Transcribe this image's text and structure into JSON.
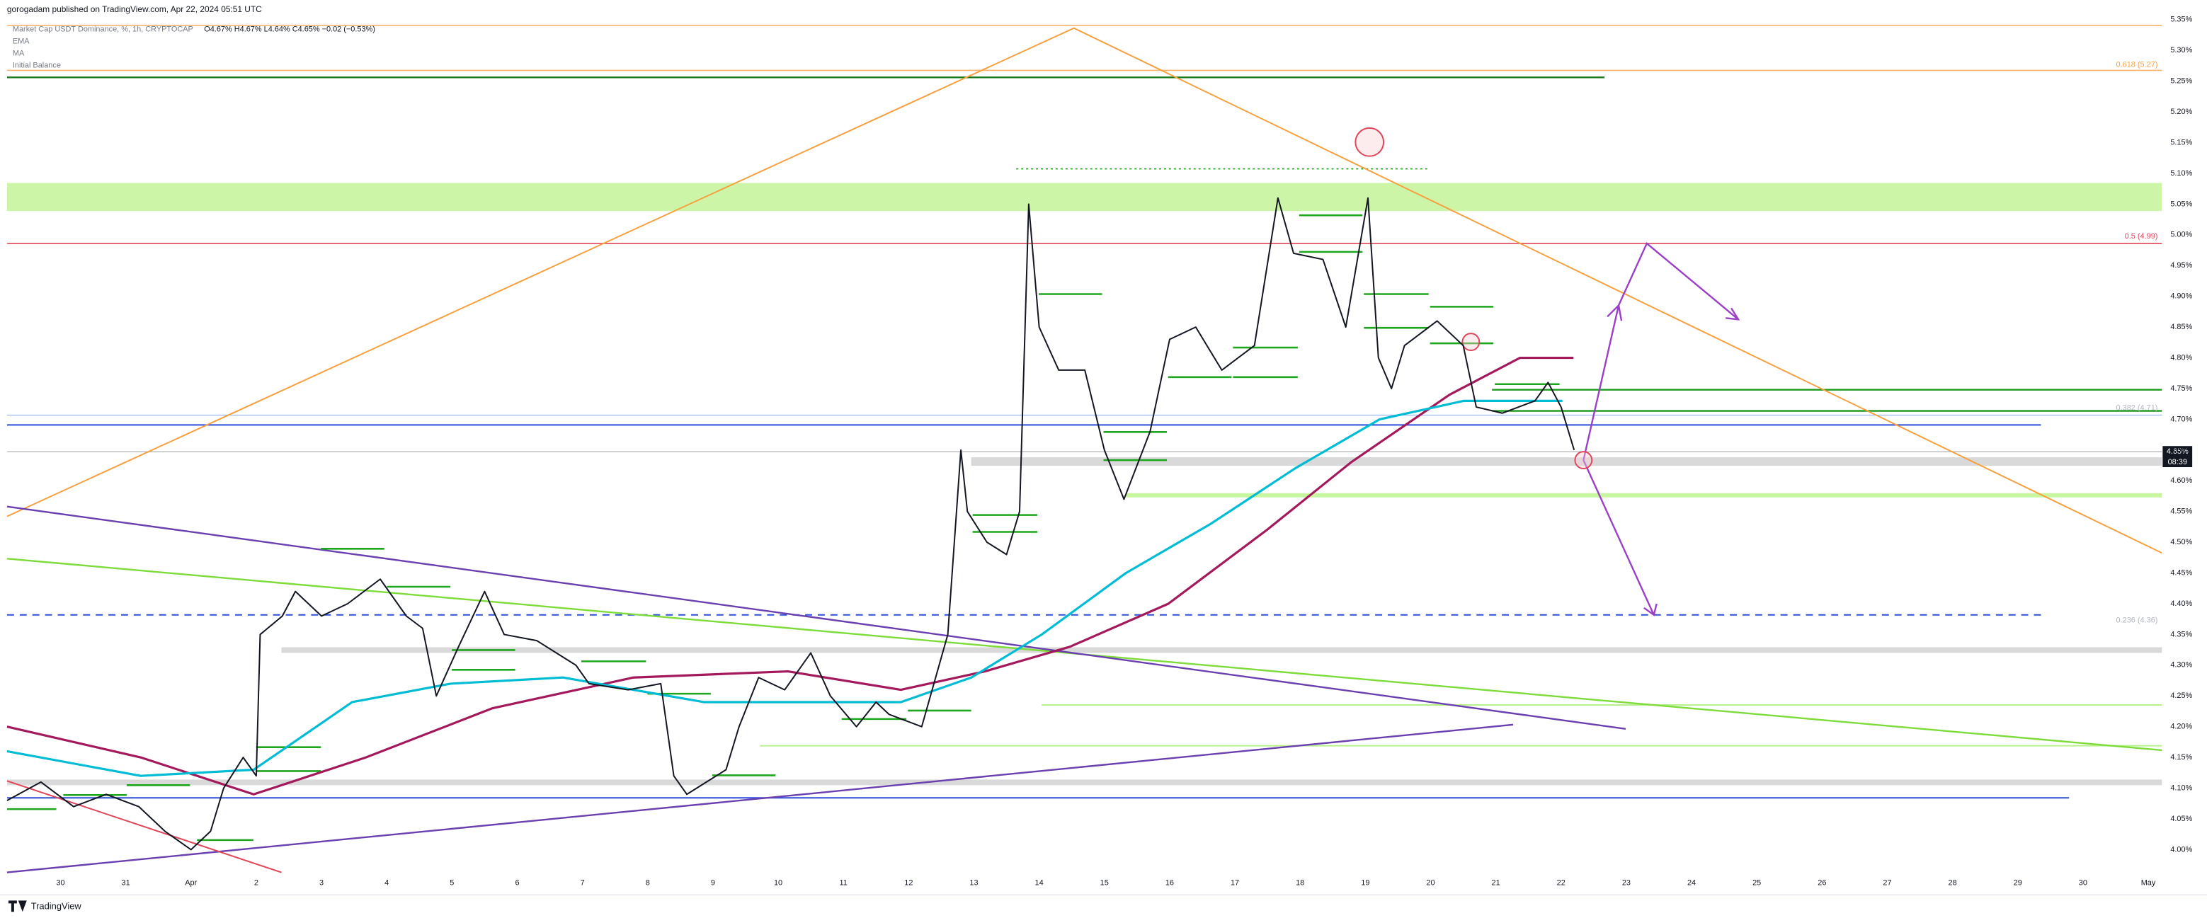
{
  "chart_data": {
    "type": "line",
    "header": "gorogadam published on TradingView.com, Apr 22, 2024 05:51 UTC",
    "ohlc": "O4.67% H4.67% L4.64% C4.65% −0.02 (−0.53%)",
    "indicator": "Initial Balance",
    "last_price_label": "4.65%",
    "countdown": "08:39",
    "fib_labels": [
      "0.618 (5.27)",
      "0.5 (4.99)",
      "0.382 (4.71)",
      "0.236 (4.36)"
    ],
    "footer": "TradingView",
    "xlim": [
      -0.82,
      32.21
    ],
    "ylim": [
      3.963,
      5.382
    ],
    "grid": false,
    "xticks": [
      {
        "value": 0,
        "label": "30"
      },
      {
        "value": 1,
        "label": "31"
      },
      {
        "value": 2,
        "label": "Apr"
      },
      {
        "value": 3,
        "label": "2"
      },
      {
        "value": 4,
        "label": "3"
      },
      {
        "value": 5,
        "label": "4"
      },
      {
        "value": 6,
        "label": "5"
      },
      {
        "value": 7,
        "label": "6"
      },
      {
        "value": 8,
        "label": "7"
      },
      {
        "value": 9,
        "label": "8"
      },
      {
        "value": 10,
        "label": "9"
      },
      {
        "value": 11,
        "label": "10"
      },
      {
        "value": 12,
        "label": "11"
      },
      {
        "value": 13,
        "label": "12"
      },
      {
        "value": 14,
        "label": "13"
      },
      {
        "value": 15,
        "label": "14"
      },
      {
        "value": 16,
        "label": "15"
      },
      {
        "value": 17,
        "label": "16"
      },
      {
        "value": 18,
        "label": "17"
      },
      {
        "value": 19,
        "label": "18"
      },
      {
        "value": 20,
        "label": "19"
      },
      {
        "value": 21,
        "label": "20"
      },
      {
        "value": 22,
        "label": "21"
      },
      {
        "value": 23,
        "label": "22"
      },
      {
        "value": 24,
        "label": "23"
      },
      {
        "value": 25,
        "label": "24"
      },
      {
        "value": 26,
        "label": "25"
      },
      {
        "value": 27,
        "label": "26"
      },
      {
        "value": 28,
        "label": "27"
      },
      {
        "value": 29,
        "label": "28"
      },
      {
        "value": 30,
        "label": "29"
      },
      {
        "value": 31,
        "label": "30"
      },
      {
        "value": 32,
        "label": "May"
      }
    ],
    "yticks": [
      {
        "value": 5.35,
        "label": "5.35%"
      },
      {
        "value": 5.3,
        "label": "5.30%"
      },
      {
        "value": 5.25,
        "label": "5.25%"
      },
      {
        "value": 5.2,
        "label": "5.20%"
      },
      {
        "value": 5.15,
        "label": "5.15%"
      },
      {
        "value": 5.1,
        "label": "5.10%"
      },
      {
        "value": 5.05,
        "label": "5.05%"
      },
      {
        "value": 5.0,
        "label": "5.00%"
      },
      {
        "value": 4.95,
        "label": "4.95%"
      },
      {
        "value": 4.9,
        "label": "4.90%"
      },
      {
        "value": 4.85,
        "label": "4.85%"
      },
      {
        "value": 4.8,
        "label": "4.80%"
      },
      {
        "value": 4.75,
        "label": "4.75%"
      },
      {
        "value": 4.7,
        "label": "4.70%"
      },
      {
        "value": 4.65,
        "label": "4.65%"
      },
      {
        "value": 4.6,
        "label": "4.60%"
      },
      {
        "value": 4.55,
        "label": "4.55%"
      },
      {
        "value": 4.5,
        "label": "4.50%"
      },
      {
        "value": 4.45,
        "label": "4.45%"
      },
      {
        "value": 4.4,
        "label": "4.40%"
      },
      {
        "value": 4.35,
        "label": "4.35%"
      },
      {
        "value": 4.3,
        "label": "4.30%"
      },
      {
        "value": 4.25,
        "label": "4.25%"
      },
      {
        "value": 4.2,
        "label": "4.20%"
      },
      {
        "value": 4.15,
        "label": "4.15%"
      },
      {
        "value": 4.1,
        "label": "4.10%"
      },
      {
        "value": 4.05,
        "label": "4.05%"
      },
      {
        "value": 4.0,
        "label": "4.00%"
      }
    ],
    "series": [
      {
        "name": "Market Cap USDT Dominance, %, 1h, CRYPTOCAP",
        "color": "#131722",
        "x": [
          -0.82,
          -0.3,
          0.2,
          0.7,
          1.2,
          1.6,
          2.0,
          2.3,
          2.5,
          2.8,
          3.0,
          3.06,
          3.4,
          3.6,
          4.0,
          4.4,
          4.9,
          5.3,
          5.55,
          5.76,
          6.1,
          6.5,
          6.8,
          7.3,
          7.9,
          8.1,
          8.7,
          9.2,
          9.4,
          9.6,
          9.9,
          10.2,
          10.4,
          10.7,
          11.1,
          11.5,
          11.8,
          12.2,
          12.5,
          12.7,
          13.2,
          13.6,
          13.8,
          13.9,
          14.2,
          14.5,
          14.7,
          14.84,
          15.0,
          15.3,
          15.7,
          16.0,
          16.3,
          16.7,
          17.0,
          17.4,
          17.8,
          18.3,
          18.66,
          18.9,
          19.35,
          19.7,
          20.04,
          20.2,
          20.4,
          20.6,
          21.1,
          21.5,
          21.7,
          22.1,
          22.6,
          22.8,
          23.0,
          23.2
        ],
        "values": [
          4.08,
          4.11,
          4.07,
          4.09,
          4.07,
          4.03,
          4.0,
          4.03,
          4.1,
          4.15,
          4.12,
          4.35,
          4.38,
          4.42,
          4.38,
          4.4,
          4.44,
          4.38,
          4.36,
          4.25,
          4.33,
          4.42,
          4.35,
          4.34,
          4.3,
          4.27,
          4.26,
          4.27,
          4.12,
          4.09,
          4.11,
          4.13,
          4.2,
          4.28,
          4.26,
          4.32,
          4.25,
          4.2,
          4.24,
          4.22,
          4.2,
          4.35,
          4.65,
          4.55,
          4.5,
          4.48,
          4.55,
          5.05,
          4.85,
          4.78,
          4.78,
          4.65,
          4.57,
          4.68,
          4.83,
          4.85,
          4.78,
          4.82,
          5.06,
          4.97,
          4.96,
          4.85,
          5.06,
          4.8,
          4.75,
          4.82,
          4.86,
          4.82,
          4.72,
          4.71,
          4.73,
          4.76,
          4.72,
          4.65
        ]
      },
      {
        "name": "EMA",
        "color": "#00bcd4",
        "x": [
          -0.82,
          1.23,
          2.96,
          4.47,
          5.98,
          7.7,
          9.86,
          11.15,
          12.88,
          13.96,
          15.04,
          16.33,
          17.63,
          18.92,
          20.22,
          21.51,
          23.02
        ],
        "values": [
          4.16,
          4.12,
          4.13,
          4.24,
          4.27,
          4.28,
          4.24,
          4.24,
          4.24,
          4.28,
          4.35,
          4.45,
          4.53,
          4.62,
          4.7,
          4.73,
          4.73
        ]
      },
      {
        "name": "MA",
        "color": "#a3195b",
        "x": [
          -0.82,
          1.23,
          2.96,
          4.68,
          6.62,
          8.78,
          11.15,
          12.88,
          14.17,
          15.47,
          16.98,
          18.49,
          19.78,
          21.29,
          22.37,
          23.19
        ],
        "values": [
          4.2,
          4.15,
          4.09,
          4.15,
          4.23,
          4.28,
          4.29,
          4.26,
          4.29,
          4.33,
          4.4,
          4.52,
          4.63,
          4.74,
          4.8,
          4.8
        ]
      }
    ]
  }
}
